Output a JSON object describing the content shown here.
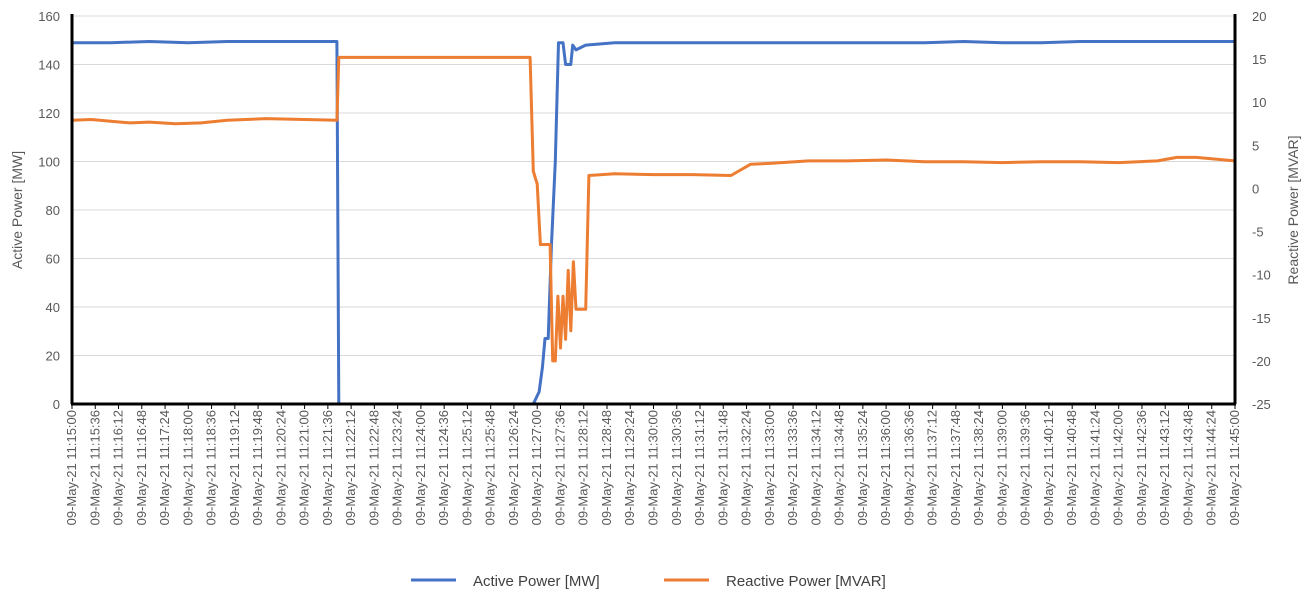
{
  "chart_data": {
    "type": "line",
    "title": "",
    "ylabel": "Active Power [MW]",
    "y2label": "Reactive Power [MVAR]",
    "ylim": [
      0,
      160
    ],
    "y2lim": [
      -25,
      20
    ],
    "yticks": [
      0,
      20,
      40,
      60,
      80,
      100,
      120,
      140,
      160
    ],
    "y2ticks": [
      -25,
      -20,
      -15,
      -10,
      -5,
      0,
      5,
      10,
      15,
      20
    ],
    "x_start": "09-May-21 11:15:00",
    "x_end": "09-May-21 11:45:00",
    "xticks": [
      "09-May-21 11:15:00",
      "09-May-21 11:15:36",
      "09-May-21 11:16:12",
      "09-May-21 11:16:48",
      "09-May-21 11:17:24",
      "09-May-21 11:18:00",
      "09-May-21 11:18:36",
      "09-May-21 11:19:12",
      "09-May-21 11:19:48",
      "09-May-21 11:20:24",
      "09-May-21 11:21:00",
      "09-May-21 11:21:36",
      "09-May-21 11:22:12",
      "09-May-21 11:22:48",
      "09-May-21 11:23:24",
      "09-May-21 11:24:00",
      "09-May-21 11:24:36",
      "09-May-21 11:25:12",
      "09-May-21 11:25:48",
      "09-May-21 11:26:24",
      "09-May-21 11:27:00",
      "09-May-21 11:27:36",
      "09-May-21 11:28:12",
      "09-May-21 11:28:48",
      "09-May-21 11:29:24",
      "09-May-21 11:30:00",
      "09-May-21 11:30:36",
      "09-May-21 11:31:12",
      "09-May-21 11:31:48",
      "09-May-21 11:32:24",
      "09-May-21 11:33:00",
      "09-May-21 11:33:36",
      "09-May-21 11:34:12",
      "09-May-21 11:34:48",
      "09-May-21 11:35:24",
      "09-May-21 11:36:00",
      "09-May-21 11:36:36",
      "09-May-21 11:37:12",
      "09-May-21 11:37:48",
      "09-May-21 11:38:24",
      "09-May-21 11:39:00",
      "09-May-21 11:39:36",
      "09-May-21 11:40:12",
      "09-May-21 11:40:48",
      "09-May-21 11:41:24",
      "09-May-21 11:42:00",
      "09-May-21 11:42:36",
      "09-May-21 11:43:12",
      "09-May-21 11:43:48",
      "09-May-21 11:44:24",
      "09-May-21 11:45:00"
    ],
    "grid": true,
    "legend": "bottom",
    "series": [
      {
        "name": "Active Power [MW]",
        "axis": "left",
        "color": "#4472C4",
        "points": [
          [
            "09-May-21 11:15:00",
            149
          ],
          [
            "09-May-21 11:16:00",
            149
          ],
          [
            "09-May-21 11:17:00",
            149.5
          ],
          [
            "09-May-21 11:18:00",
            149
          ],
          [
            "09-May-21 11:19:00",
            149.5
          ],
          [
            "09-May-21 11:20:00",
            149.5
          ],
          [
            "09-May-21 11:21:00",
            149.5
          ],
          [
            "09-May-21 11:21:50",
            149.5
          ],
          [
            "09-May-21 11:21:53",
            0
          ],
          [
            "09-May-21 11:24:00",
            0
          ],
          [
            "09-May-21 11:26:54",
            0
          ],
          [
            "09-May-21 11:27:03",
            5
          ],
          [
            "09-May-21 11:27:08",
            15
          ],
          [
            "09-May-21 11:27:12",
            27
          ],
          [
            "09-May-21 11:27:17",
            27
          ],
          [
            "09-May-21 11:27:22",
            65
          ],
          [
            "09-May-21 11:27:28",
            100
          ],
          [
            "09-May-21 11:27:33",
            149
          ],
          [
            "09-May-21 11:27:40",
            149
          ],
          [
            "09-May-21 11:27:44",
            140
          ],
          [
            "09-May-21 11:27:52",
            140
          ],
          [
            "09-May-21 11:27:55",
            148
          ],
          [
            "09-May-21 11:28:00",
            146
          ],
          [
            "09-May-21 11:28:15",
            148
          ],
          [
            "09-May-21 11:29:00",
            149
          ],
          [
            "09-May-21 11:30:00",
            149
          ],
          [
            "09-May-21 11:31:00",
            149
          ],
          [
            "09-May-21 11:32:00",
            149
          ],
          [
            "09-May-21 11:33:00",
            149
          ],
          [
            "09-May-21 11:34:00",
            149
          ],
          [
            "09-May-21 11:35:00",
            149
          ],
          [
            "09-May-21 11:36:00",
            149
          ],
          [
            "09-May-21 11:37:00",
            149
          ],
          [
            "09-May-21 11:38:00",
            149.5
          ],
          [
            "09-May-21 11:39:00",
            149
          ],
          [
            "09-May-21 11:40:00",
            149
          ],
          [
            "09-May-21 11:41:00",
            149.5
          ],
          [
            "09-May-21 11:42:00",
            149.5
          ],
          [
            "09-May-21 11:43:00",
            149.5
          ],
          [
            "09-May-21 11:44:00",
            149.5
          ],
          [
            "09-May-21 11:45:00",
            149.5
          ]
        ]
      },
      {
        "name": "Reactive Power [MVAR]",
        "axis": "right",
        "color": "#ED7D31",
        "points": [
          [
            "09-May-21 11:15:00",
            7.9
          ],
          [
            "09-May-21 11:15:30",
            8.0
          ],
          [
            "09-May-21 11:16:00",
            7.8
          ],
          [
            "09-May-21 11:16:30",
            7.6
          ],
          [
            "09-May-21 11:17:00",
            7.7
          ],
          [
            "09-May-21 11:17:40",
            7.5
          ],
          [
            "09-May-21 11:18:20",
            7.6
          ],
          [
            "09-May-21 11:19:00",
            7.9
          ],
          [
            "09-May-21 11:20:00",
            8.1
          ],
          [
            "09-May-21 11:21:00",
            8.0
          ],
          [
            "09-May-21 11:21:50",
            7.9
          ],
          [
            "09-May-21 11:21:53",
            15.2
          ],
          [
            "09-May-21 11:24:00",
            15.2
          ],
          [
            "09-May-21 11:26:49",
            15.2
          ],
          [
            "09-May-21 11:26:54",
            2.0
          ],
          [
            "09-May-21 11:27:00",
            0.5
          ],
          [
            "09-May-21 11:27:05",
            -6.5
          ],
          [
            "09-May-21 11:27:15",
            -6.5
          ],
          [
            "09-May-21 11:27:20",
            -6.5
          ],
          [
            "09-May-21 11:27:24",
            -20.0
          ],
          [
            "09-May-21 11:27:28",
            -20.0
          ],
          [
            "09-May-21 11:27:32",
            -12.5
          ],
          [
            "09-May-21 11:27:36",
            -18.5
          ],
          [
            "09-May-21 11:27:40",
            -12.5
          ],
          [
            "09-May-21 11:27:44",
            -17.5
          ],
          [
            "09-May-21 11:27:48",
            -9.5
          ],
          [
            "09-May-21 11:27:52",
            -16.5
          ],
          [
            "09-May-21 11:27:56",
            -8.5
          ],
          [
            "09-May-21 11:28:00",
            -14.0
          ],
          [
            "09-May-21 11:28:04",
            -14.0
          ],
          [
            "09-May-21 11:28:08",
            -14.0
          ],
          [
            "09-May-21 11:28:15",
            -14.0
          ],
          [
            "09-May-21 11:28:20",
            1.5
          ],
          [
            "09-May-21 11:29:00",
            1.7
          ],
          [
            "09-May-21 11:30:00",
            1.6
          ],
          [
            "09-May-21 11:31:00",
            1.6
          ],
          [
            "09-May-21 11:32:00",
            1.5
          ],
          [
            "09-May-21 11:32:30",
            2.8
          ],
          [
            "09-May-21 11:33:00",
            2.9
          ],
          [
            "09-May-21 11:34:00",
            3.2
          ],
          [
            "09-May-21 11:35:00",
            3.2
          ],
          [
            "09-May-21 11:36:00",
            3.3
          ],
          [
            "09-May-21 11:37:00",
            3.1
          ],
          [
            "09-May-21 11:38:00",
            3.1
          ],
          [
            "09-May-21 11:39:00",
            3.0
          ],
          [
            "09-May-21 11:40:00",
            3.1
          ],
          [
            "09-May-21 11:41:00",
            3.1
          ],
          [
            "09-May-21 11:42:00",
            3.0
          ],
          [
            "09-May-21 11:43:00",
            3.2
          ],
          [
            "09-May-21 11:43:30",
            3.6
          ],
          [
            "09-May-21 11:44:00",
            3.6
          ],
          [
            "09-May-21 11:44:30",
            3.4
          ],
          [
            "09-May-21 11:45:00",
            3.2
          ]
        ]
      }
    ]
  }
}
